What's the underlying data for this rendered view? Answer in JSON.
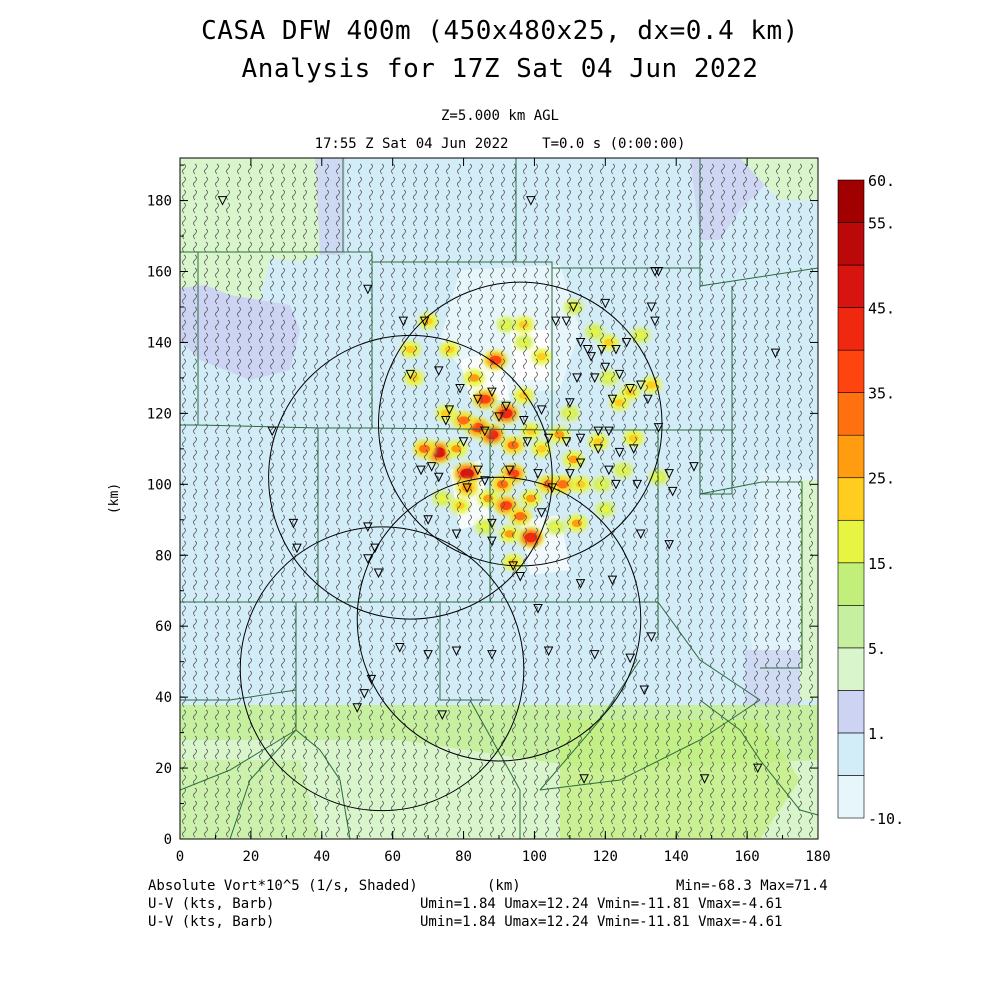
{
  "header": {
    "title": "CASA DFW 400m (450x480x25, dx=0.4 km)",
    "subtitle": "Analysis for 17Z Sat 04 Jun 2022",
    "level": "Z=5.000 km AGL",
    "time": "17:55 Z Sat 04 Jun 2022    T=0.0 s (0:00:00)"
  },
  "footer": {
    "field_label": "Absolute Vort*10^5 (1/s, Shaded)",
    "xunit": "(km)",
    "minmax": "Min=-68.3 Max=71.4",
    "wind1_label": "U-V (kts, Barb)",
    "wind1_stats": "Umin=1.84 Umax=12.24 Vmin=-11.81 Vmax=-4.61",
    "wind2_label": "U-V (kts, Barb)",
    "wind2_stats": "Umin=1.84 Umax=12.24 Vmin=-11.81 Vmax=-4.61"
  },
  "chart_data": {
    "type": "heatmap",
    "xlabel": "(km)",
    "ylabel": "(km)",
    "xlim": [
      0,
      180
    ],
    "ylim": [
      0,
      192
    ],
    "xticks": [
      "0",
      "20",
      "40",
      "60",
      "80",
      "100",
      "120",
      "140",
      "160",
      "180"
    ],
    "yticks": [
      "0",
      "20",
      "40",
      "60",
      "80",
      "100",
      "120",
      "140",
      "160",
      "180"
    ],
    "colorbar": {
      "colors": [
        "#e6f6fb",
        "#d2ecf8",
        "#cdd4f3",
        "#d9f5cc",
        "#c6f0a0",
        "#c2ef7a",
        "#e8f442",
        "#ffcc20",
        "#ff9c10",
        "#ff7010",
        "#ff4410",
        "#f02810",
        "#d81410",
        "#bb0808",
        "#a00000"
      ],
      "labels": [
        {
          "text": "60.",
          "index": 15
        },
        {
          "text": "55.",
          "index": 14
        },
        {
          "text": "45.",
          "index": 12
        },
        {
          "text": "35.",
          "index": 10
        },
        {
          "text": "25.",
          "index": 8
        },
        {
          "text": "15.",
          "index": 6
        },
        {
          "text": "5.",
          "index": 4
        },
        {
          "text": "1.",
          "index": 2
        },
        {
          "text": "-10.",
          "index": 0
        }
      ]
    },
    "radar_rings": [
      {
        "x": 65,
        "y": 102,
        "r": 40
      },
      {
        "x": 96,
        "y": 117,
        "r": 40
      },
      {
        "x": 90,
        "y": 62,
        "r": 40
      },
      {
        "x": 57,
        "y": 48,
        "r": 40
      }
    ],
    "stations": [
      [
        12,
        180
      ],
      [
        99,
        180
      ],
      [
        53,
        155
      ],
      [
        63,
        146
      ],
      [
        69,
        146
      ],
      [
        65,
        131
      ],
      [
        73,
        132
      ],
      [
        76,
        121
      ],
      [
        75,
        118
      ],
      [
        79,
        127
      ],
      [
        84,
        124
      ],
      [
        88,
        126
      ],
      [
        92,
        122
      ],
      [
        86,
        115
      ],
      [
        90,
        119
      ],
      [
        97,
        118
      ],
      [
        102,
        121
      ],
      [
        98,
        112
      ],
      [
        80,
        112
      ],
      [
        71,
        105
      ],
      [
        68,
        104
      ],
      [
        73,
        102
      ],
      [
        81,
        99
      ],
      [
        84,
        104
      ],
      [
        86,
        101
      ],
      [
        93,
        104
      ],
      [
        101,
        103
      ],
      [
        105,
        99
      ],
      [
        110,
        103
      ],
      [
        113,
        106
      ],
      [
        118,
        110
      ],
      [
        121,
        104
      ],
      [
        123,
        100
      ],
      [
        129,
        100
      ],
      [
        139,
        98
      ],
      [
        145,
        105
      ],
      [
        138,
        103
      ],
      [
        106,
        146
      ],
      [
        109,
        146
      ],
      [
        113,
        140
      ],
      [
        115,
        138
      ],
      [
        117,
        130
      ],
      [
        120,
        133
      ],
      [
        124,
        131
      ],
      [
        127,
        127
      ],
      [
        130,
        128
      ],
      [
        132,
        124
      ],
      [
        111,
        150
      ],
      [
        120,
        151
      ],
      [
        133,
        150
      ],
      [
        135,
        160
      ],
      [
        134,
        146
      ],
      [
        126,
        140
      ],
      [
        123,
        138
      ],
      [
        119,
        138
      ],
      [
        116,
        136
      ],
      [
        112,
        130
      ],
      [
        122,
        124
      ],
      [
        110,
        123
      ],
      [
        104,
        113
      ],
      [
        109,
        112
      ],
      [
        113,
        113
      ],
      [
        118,
        115
      ],
      [
        121,
        115
      ],
      [
        124,
        109
      ],
      [
        128,
        110
      ],
      [
        135,
        116
      ],
      [
        134,
        160
      ],
      [
        168,
        137
      ],
      [
        26,
        115
      ],
      [
        32,
        89
      ],
      [
        33,
        82
      ],
      [
        53,
        88
      ],
      [
        55,
        82
      ],
      [
        53,
        79
      ],
      [
        56,
        75
      ],
      [
        70,
        90
      ],
      [
        78,
        86
      ],
      [
        88,
        84
      ],
      [
        94,
        77
      ],
      [
        96,
        74
      ],
      [
        101,
        65
      ],
      [
        113,
        72
      ],
      [
        122,
        73
      ],
      [
        130,
        86
      ],
      [
        138,
        83
      ],
      [
        133,
        57
      ],
      [
        127,
        51
      ],
      [
        117,
        52
      ],
      [
        104,
        53
      ],
      [
        88,
        52
      ],
      [
        78,
        53
      ],
      [
        70,
        52
      ],
      [
        62,
        54
      ],
      [
        54,
        45
      ],
      [
        52,
        41
      ],
      [
        50,
        37
      ],
      [
        74,
        35
      ],
      [
        88,
        89
      ],
      [
        102,
        92
      ],
      [
        114,
        17
      ],
      [
        148,
        17
      ],
      [
        163,
        20
      ],
      [
        131,
        42
      ]
    ],
    "hotspots": [
      {
        "x": 81,
        "y": 103,
        "v": 45
      },
      {
        "x": 73,
        "y": 109,
        "v": 45
      },
      {
        "x": 88,
        "y": 114,
        "v": 40
      },
      {
        "x": 92,
        "y": 120,
        "v": 40
      },
      {
        "x": 86,
        "y": 124,
        "v": 35
      },
      {
        "x": 84,
        "y": 116,
        "v": 38
      },
      {
        "x": 80,
        "y": 118,
        "v": 30
      },
      {
        "x": 89,
        "y": 135,
        "v": 35
      },
      {
        "x": 94,
        "y": 111,
        "v": 30
      },
      {
        "x": 94,
        "y": 103,
        "v": 35
      },
      {
        "x": 91,
        "y": 100,
        "v": 30
      },
      {
        "x": 87,
        "y": 96,
        "v": 25
      },
      {
        "x": 92,
        "y": 94,
        "v": 35
      },
      {
        "x": 96,
        "y": 91,
        "v": 30
      },
      {
        "x": 99,
        "y": 96,
        "v": 25
      },
      {
        "x": 104,
        "y": 100,
        "v": 30
      },
      {
        "x": 99,
        "y": 85,
        "v": 40
      },
      {
        "x": 93,
        "y": 86,
        "v": 25
      },
      {
        "x": 78,
        "y": 110,
        "v": 25
      },
      {
        "x": 69,
        "y": 110,
        "v": 30
      },
      {
        "x": 83,
        "y": 130,
        "v": 25
      },
      {
        "x": 97,
        "y": 125,
        "v": 22
      },
      {
        "x": 81,
        "y": 99,
        "v": 28
      },
      {
        "x": 97,
        "y": 145,
        "v": 22
      },
      {
        "x": 65,
        "y": 138,
        "v": 22
      },
      {
        "x": 66,
        "y": 130,
        "v": 20
      },
      {
        "x": 70,
        "y": 146,
        "v": 20
      },
      {
        "x": 75,
        "y": 120,
        "v": 22
      },
      {
        "x": 107,
        "y": 114,
        "v": 25
      },
      {
        "x": 111,
        "y": 107,
        "v": 25
      },
      {
        "x": 118,
        "y": 112,
        "v": 22
      },
      {
        "x": 113,
        "y": 100,
        "v": 22
      },
      {
        "x": 108,
        "y": 100,
        "v": 30
      },
      {
        "x": 112,
        "y": 89,
        "v": 25
      },
      {
        "x": 94,
        "y": 78,
        "v": 22
      },
      {
        "x": 124,
        "y": 123,
        "v": 20
      },
      {
        "x": 128,
        "y": 113,
        "v": 22
      },
      {
        "x": 121,
        "y": 140,
        "v": 20
      },
      {
        "x": 117,
        "y": 143,
        "v": 18
      },
      {
        "x": 130,
        "y": 142,
        "v": 18
      },
      {
        "x": 133,
        "y": 128,
        "v": 22
      },
      {
        "x": 121,
        "y": 130,
        "v": 18
      },
      {
        "x": 127,
        "y": 126,
        "v": 20
      },
      {
        "x": 102,
        "y": 110,
        "v": 22
      },
      {
        "x": 99,
        "y": 115,
        "v": 22
      },
      {
        "x": 74,
        "y": 96,
        "v": 18
      },
      {
        "x": 79,
        "y": 94,
        "v": 20
      },
      {
        "x": 102,
        "y": 136,
        "v": 20
      },
      {
        "x": 110,
        "y": 120,
        "v": 18
      },
      {
        "x": 119,
        "y": 100,
        "v": 18
      },
      {
        "x": 125,
        "y": 104,
        "v": 18
      },
      {
        "x": 120,
        "y": 93,
        "v": 18
      },
      {
        "x": 135,
        "y": 102,
        "v": 18
      },
      {
        "x": 106,
        "y": 88,
        "v": 18
      },
      {
        "x": 97,
        "y": 140,
        "v": 18
      },
      {
        "x": 76,
        "y": 138,
        "v": 20
      },
      {
        "x": 92,
        "y": 145,
        "v": 18
      },
      {
        "x": 111,
        "y": 150,
        "v": 18
      },
      {
        "x": 86,
        "y": 88,
        "v": 18
      }
    ]
  }
}
